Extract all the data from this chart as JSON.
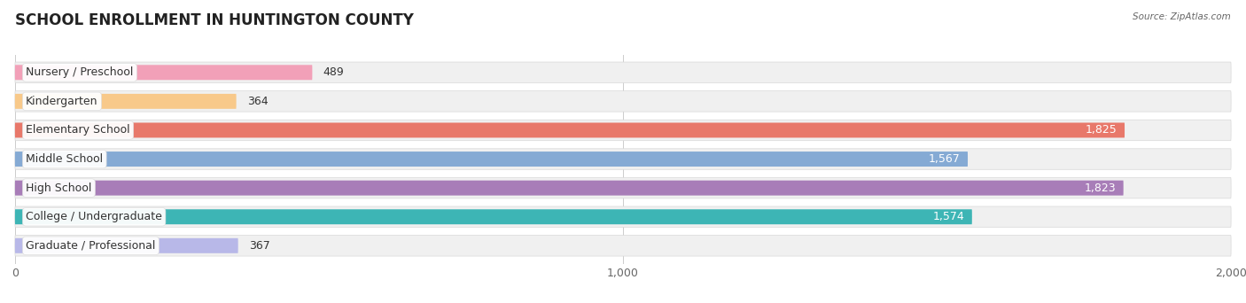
{
  "title": "SCHOOL ENROLLMENT IN HUNTINGTON COUNTY",
  "source": "Source: ZipAtlas.com",
  "categories": [
    "Nursery / Preschool",
    "Kindergarten",
    "Elementary School",
    "Middle School",
    "High School",
    "College / Undergraduate",
    "Graduate / Professional"
  ],
  "values": [
    489,
    364,
    1825,
    1567,
    1823,
    1574,
    367
  ],
  "bar_colors": [
    "#f2a0b8",
    "#f8c98a",
    "#e8786a",
    "#85aad4",
    "#a87db8",
    "#3db5b5",
    "#b8b8e8"
  ],
  "bar_bg_color": "#e8e8e8",
  "row_bg_color": "#f0f0f0",
  "xlim": [
    0,
    2000
  ],
  "xticks": [
    0,
    1000,
    2000
  ],
  "xtick_labels": [
    "0",
    "1,000",
    "2,000"
  ],
  "title_fontsize": 12,
  "label_fontsize": 9,
  "value_fontsize": 9,
  "background_color": "#ffffff",
  "large_threshold": 600
}
